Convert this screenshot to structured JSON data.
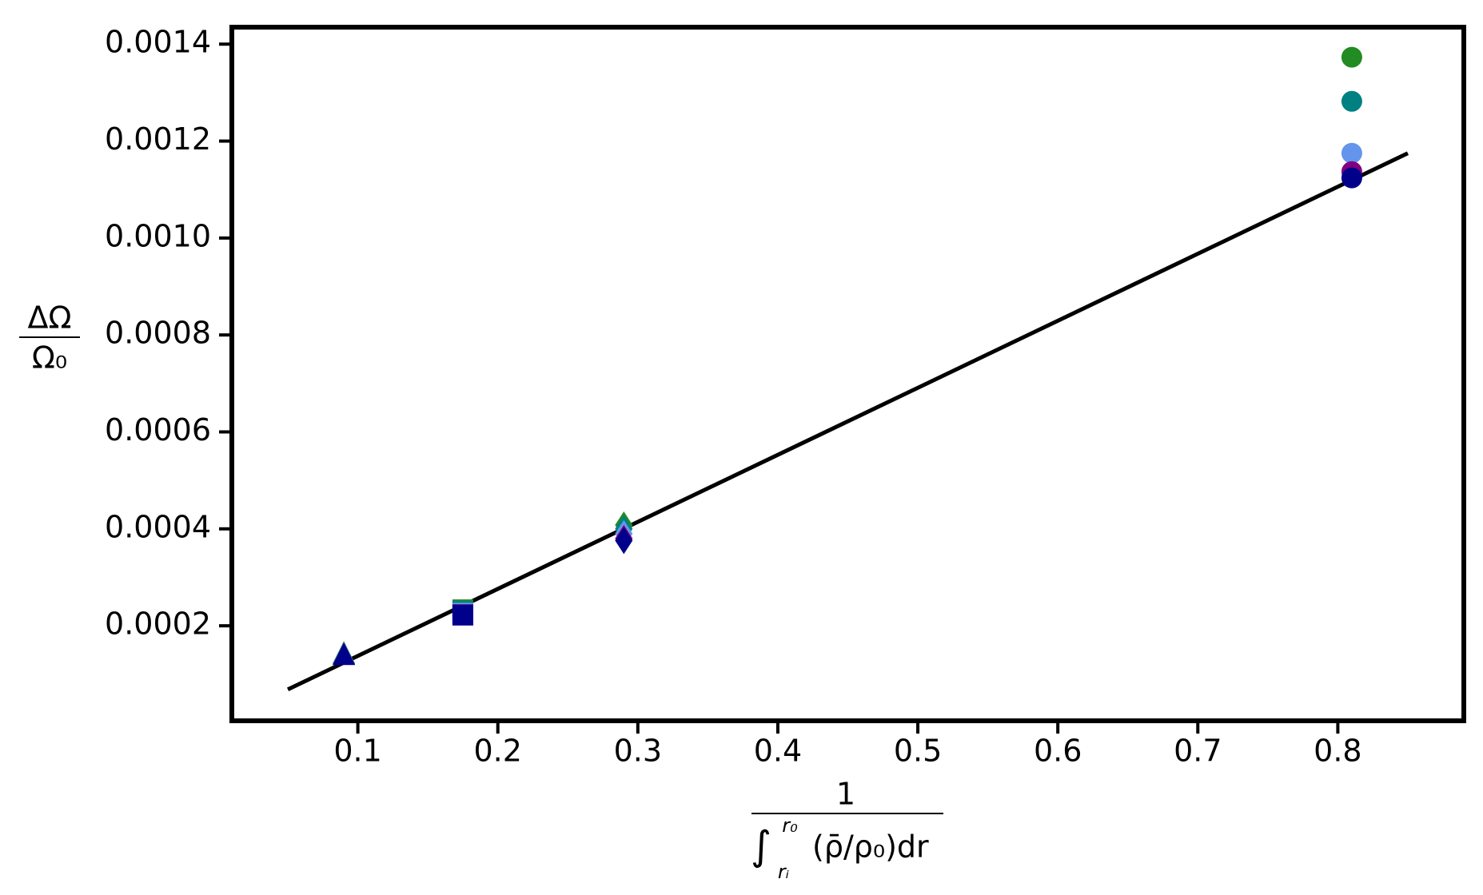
{
  "chart_data": {
    "type": "scatter",
    "ylabel": {
      "numerator": "ΔΩ",
      "denominator": "Ω₀"
    },
    "xlabel": {
      "numerator": "1",
      "integral": "∫",
      "upper": "r₀",
      "lower": "rᵢ",
      "denominator": "(ρ̄/ρ₀)dr"
    },
    "x": [
      0.09,
      0.175,
      0.29,
      0.81
    ],
    "markers": [
      "^",
      "s",
      "D",
      "o"
    ],
    "series": [
      {
        "color": "#228b22",
        "values": [
          0.000142,
          0.000233,
          0.000408,
          0.001373
        ]
      },
      {
        "color": "#008080",
        "values": [
          0.000141,
          0.00023,
          0.0004,
          0.001282
        ]
      },
      {
        "color": "#6495ed",
        "values": [
          0.00014,
          0.000226,
          0.00039,
          0.001175
        ]
      },
      {
        "color": "#800080",
        "values": [
          0.000139,
          0.000223,
          0.00038,
          0.001137
        ]
      },
      {
        "color": "#00008b",
        "values": [
          0.000139,
          0.000222,
          0.000376,
          0.001124
        ]
      }
    ],
    "fit": {
      "color": "#000000",
      "x": [
        0.05,
        0.85
      ],
      "y": [
        6.87e-05,
        0.001175
      ]
    },
    "xlim": [
      0.01,
      0.89
    ],
    "ylim": [
      4e-06,
      0.001435
    ],
    "xticks": [
      0.1,
      0.2,
      0.3,
      0.4,
      0.5,
      0.6,
      0.7,
      0.8
    ],
    "yticks": [
      0.0002,
      0.0004,
      0.0006,
      0.0008,
      {
        "value": 0.001,
        "label": "0.0010"
      },
      0.0012,
      0.0014
    ]
  }
}
